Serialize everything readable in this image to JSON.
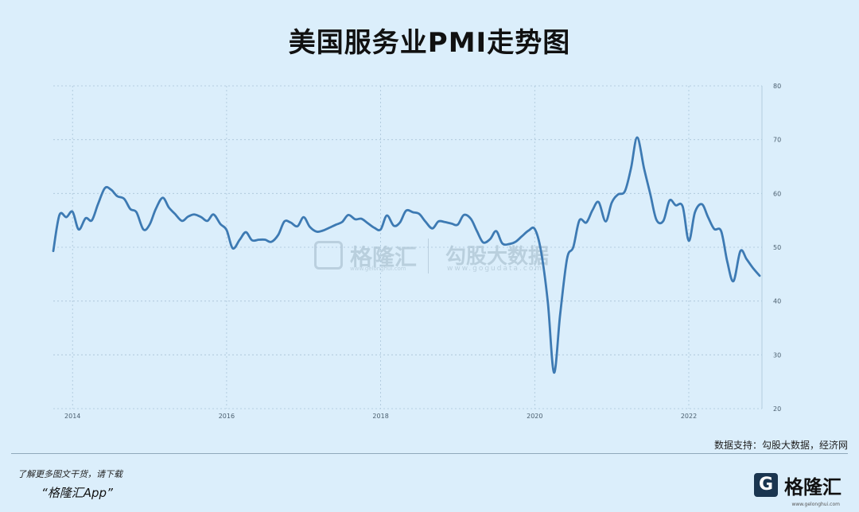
{
  "title": "美国服务业PMI走势图",
  "source": "数据支持：勾股大数据，经济网",
  "watermark": {
    "brand1": "格隆汇",
    "brand1_sub": "www.gelonghui.com",
    "brand2": "勾股大数据",
    "brand2_sub": "www.gogudata.com"
  },
  "footer": {
    "text": "了解更多图文干货，请下载",
    "app": "“格隆汇App”",
    "logo_mark": "G",
    "logo_text": "格隆汇",
    "logo_sub": "www.gelonghui.com"
  },
  "colors": {
    "background": "#dbeefb",
    "line": "#3d7ab3",
    "grid": "#a9c4d8"
  },
  "chart_data": {
    "type": "line",
    "title": "美国服务业PMI走势图",
    "xlabel": "",
    "ylabel": "",
    "xlim": [
      2013.75,
      2022.95
    ],
    "ylim": [
      20,
      80
    ],
    "x_ticks": [
      "2014",
      "2016",
      "2018",
      "2020",
      "2022"
    ],
    "y_ticks": [
      "80",
      "70",
      "60",
      "50",
      "40",
      "30",
      "20"
    ],
    "grid": true,
    "y_axis_side": "right",
    "series": [
      {
        "x": [
          2013.75,
          2013.83,
          2013.92,
          2014.0,
          2014.08,
          2014.17,
          2014.25,
          2014.33,
          2014.42,
          2014.5,
          2014.58,
          2014.67,
          2014.75,
          2014.83,
          2014.92,
          2015.0,
          2015.08,
          2015.17,
          2015.25,
          2015.33,
          2015.42,
          2015.5,
          2015.58,
          2015.67,
          2015.75,
          2015.83,
          2015.92,
          2016.0,
          2016.08,
          2016.17,
          2016.25,
          2016.33,
          2016.42,
          2016.5,
          2016.58,
          2016.67,
          2016.75,
          2016.83,
          2016.92,
          2017.0,
          2017.08,
          2017.17,
          2017.25,
          2017.33,
          2017.42,
          2017.5,
          2017.58,
          2017.67,
          2017.75,
          2017.83,
          2017.92,
          2018.0,
          2018.08,
          2018.17,
          2018.25,
          2018.33,
          2018.42,
          2018.5,
          2018.58,
          2018.67,
          2018.75,
          2018.83,
          2018.92,
          2019.0,
          2019.08,
          2019.17,
          2019.25,
          2019.33,
          2019.42,
          2019.5,
          2019.58,
          2019.67,
          2019.75,
          2019.83,
          2019.92,
          2020.0,
          2020.08,
          2020.17,
          2020.25,
          2020.33,
          2020.42,
          2020.5,
          2020.58,
          2020.67,
          2020.75,
          2020.83,
          2020.92,
          2021.0,
          2021.08,
          2021.17,
          2021.25,
          2021.33,
          2021.42,
          2021.5,
          2021.58,
          2021.67,
          2021.75,
          2021.83,
          2021.92,
          2022.0,
          2022.08,
          2022.17,
          2022.25,
          2022.33,
          2022.42,
          2022.5,
          2022.58,
          2022.67,
          2022.75,
          2022.83,
          2022.92
        ],
        "values": [
          49.3,
          56.0,
          55.6,
          56.6,
          53.3,
          55.4,
          55.0,
          58.0,
          61.0,
          60.7,
          59.5,
          59.0,
          57.1,
          56.5,
          53.3,
          54.2,
          57.1,
          59.2,
          57.4,
          56.2,
          54.9,
          55.7,
          56.1,
          55.6,
          54.9,
          56.1,
          54.3,
          53.2,
          49.8,
          51.4,
          52.8,
          51.3,
          51.4,
          51.4,
          51.0,
          52.3,
          54.8,
          54.6,
          53.9,
          55.6,
          53.8,
          52.9,
          53.1,
          53.6,
          54.2,
          54.7,
          56.0,
          55.2,
          55.3,
          54.5,
          53.6,
          53.3,
          55.9,
          54.0,
          54.6,
          56.8,
          56.5,
          56.2,
          54.8,
          53.5,
          54.8,
          54.7,
          54.4,
          54.2,
          56.0,
          55.3,
          53.0,
          50.9,
          51.5,
          53.0,
          50.7,
          50.6,
          51.0,
          52.0,
          53.1,
          53.4,
          49.4,
          39.8,
          26.7,
          37.5,
          47.9,
          50.0,
          55.0,
          54.6,
          56.9,
          58.4,
          54.8,
          58.3,
          59.8,
          60.4,
          64.7,
          70.4,
          64.6,
          59.9,
          55.1,
          54.9,
          58.7,
          57.8,
          57.6,
          51.2,
          56.5,
          58.0,
          55.6,
          53.4,
          53.0,
          47.3,
          43.7,
          49.3,
          47.8,
          46.2,
          44.7
        ]
      }
    ]
  }
}
